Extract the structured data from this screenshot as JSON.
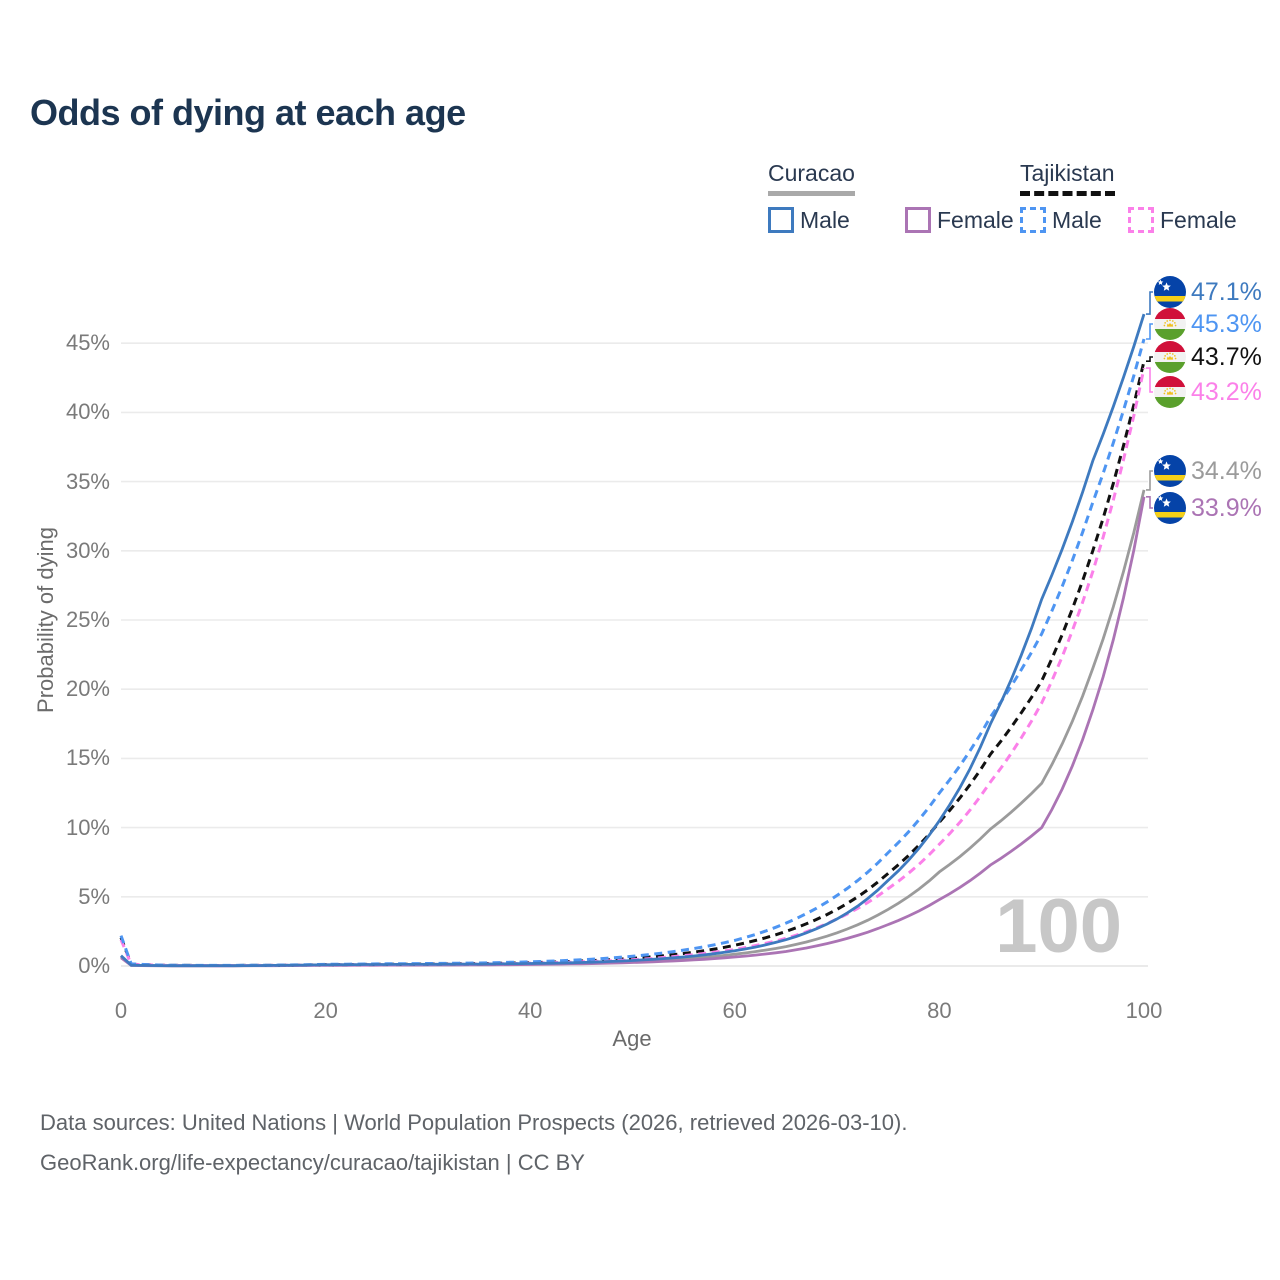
{
  "page": {
    "title": "Odds of dying at each age"
  },
  "legend": {
    "groups": [
      {
        "name": "Curacao",
        "line_style": "solid",
        "items": [
          {
            "label": "Male",
            "color": "#3e7abf"
          },
          {
            "label": "Female",
            "color": "#ab74b4"
          }
        ]
      },
      {
        "name": "Tajikistan",
        "line_style": "dashed",
        "items": [
          {
            "label": "Male",
            "color": "#4e95f2"
          },
          {
            "label": "Female",
            "color": "#fb80e9"
          }
        ]
      }
    ]
  },
  "chart_data": {
    "type": "line",
    "title": "Odds of dying at each age",
    "xlabel": "Age",
    "ylabel": "Probability of dying",
    "xlim": [
      0,
      100
    ],
    "ylim_pct": [
      0,
      48
    ],
    "x_ticks": [
      0,
      20,
      40,
      60,
      80,
      100
    ],
    "y_ticks_pct": [
      0,
      5,
      10,
      15,
      20,
      25,
      30,
      35,
      40,
      45
    ],
    "grid": "horizontal",
    "watermark": "100",
    "ages": [
      0,
      1,
      5,
      10,
      15,
      20,
      25,
      30,
      35,
      40,
      45,
      50,
      55,
      60,
      65,
      70,
      75,
      80,
      85,
      90,
      95,
      100
    ],
    "series": [
      {
        "name": "Curacao Male",
        "country": "Curacao",
        "sex": "Male",
        "color": "#3e7abf",
        "dash": false,
        "flag": "curacao",
        "end_label": "47.1%",
        "values_pct": [
          0.75,
          0.06,
          0.02,
          0.02,
          0.04,
          0.09,
          0.11,
          0.12,
          0.14,
          0.18,
          0.25,
          0.4,
          0.65,
          1.1,
          1.9,
          3.4,
          6.2,
          10.5,
          17.5,
          26.5,
          36.5,
          47.1
        ]
      },
      {
        "name": "Tajikistan Male",
        "country": "Tajikistan",
        "sex": "Male",
        "color": "#4e95f2",
        "dash": true,
        "flag": "tajikistan",
        "end_label": "45.3%",
        "values_pct": [
          2.2,
          0.15,
          0.05,
          0.04,
          0.06,
          0.12,
          0.15,
          0.18,
          0.22,
          0.3,
          0.45,
          0.7,
          1.15,
          1.85,
          3.1,
          5.1,
          8.2,
          12.5,
          18.0,
          24.0,
          33.5,
          45.3
        ]
      },
      {
        "name": "Tajikistan Both sexes",
        "country": "Tajikistan",
        "sex": "Both",
        "color": "#111111",
        "dash": true,
        "flag": "tajikistan",
        "end_label": "43.7%",
        "values_pct": [
          2.05,
          0.13,
          0.045,
          0.035,
          0.05,
          0.1,
          0.12,
          0.14,
          0.17,
          0.24,
          0.36,
          0.55,
          0.9,
          1.5,
          2.5,
          4.1,
          6.7,
          10.4,
          15.3,
          20.6,
          30.0,
          43.7
        ]
      },
      {
        "name": "Tajikistan Female",
        "country": "Tajikistan",
        "sex": "Female",
        "color": "#fb80e9",
        "dash": true,
        "flag": "tajikistan",
        "end_label": "43.2%",
        "values_pct": [
          1.9,
          0.12,
          0.04,
          0.03,
          0.045,
          0.08,
          0.1,
          0.11,
          0.14,
          0.2,
          0.3,
          0.45,
          0.75,
          1.2,
          2.0,
          3.4,
          5.6,
          8.8,
          13.3,
          19.0,
          28.5,
          43.2
        ]
      },
      {
        "name": "Curacao Both sexes",
        "country": "Curacao",
        "sex": "Both",
        "color": "#9b9b9b",
        "dash": false,
        "flag": "curacao",
        "end_label": "34.4%",
        "values_pct": [
          0.7,
          0.05,
          0.02,
          0.02,
          0.03,
          0.07,
          0.08,
          0.09,
          0.11,
          0.15,
          0.21,
          0.32,
          0.5,
          0.85,
          1.4,
          2.4,
          4.1,
          6.8,
          9.9,
          13.2,
          21.5,
          34.4
        ]
      },
      {
        "name": "Curacao Female",
        "country": "Curacao",
        "sex": "Female",
        "color": "#ab74b4",
        "dash": false,
        "flag": "curacao",
        "end_label": "33.9%",
        "values_pct": [
          0.6,
          0.04,
          0.015,
          0.015,
          0.025,
          0.05,
          0.06,
          0.07,
          0.08,
          0.11,
          0.16,
          0.25,
          0.4,
          0.65,
          1.05,
          1.8,
          3.0,
          4.8,
          7.3,
          10.0,
          18.5,
          33.9
        ]
      }
    ]
  },
  "footer": {
    "line1": "Data sources: United Nations | World Population Prospects (2026, retrieved 2026-03-10).",
    "line2": "GeoRank.org/life-expectancy/curacao/tajikistan | CC BY"
  }
}
